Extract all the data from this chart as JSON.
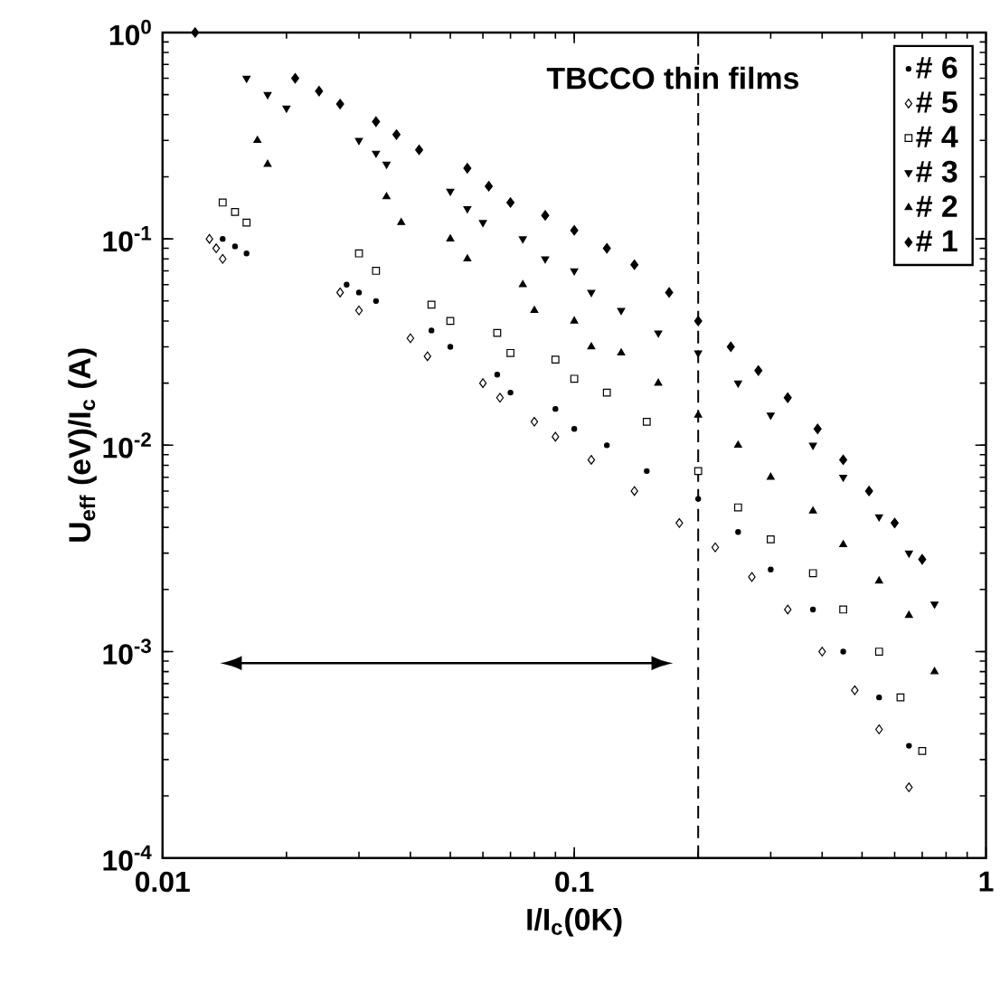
{
  "chart_data": {
    "type": "scatter",
    "xlabel": "I/I$_{c}$(0K)",
    "ylabel": "U$_{eff}$ (eV)/I$_{c}$ (A)",
    "annotations": [
      "TBCCO thin films"
    ],
    "log": "xy",
    "xlim": [
      0.01,
      1
    ],
    "ylim": [
      0.0001,
      1
    ],
    "xticks": [
      0.01,
      0.1,
      1
    ],
    "yticks": [
      {
        "value": 0.0001,
        "label": "10$^{-4}$"
      },
      {
        "value": 0.001,
        "label": "10$^{-3}$"
      },
      {
        "value": 0.01,
        "label": "10$^{-2}$"
      },
      {
        "value": 0.1,
        "label": "10$^{-1}$"
      },
      {
        "value": 1,
        "label": "10$^{0}$"
      }
    ],
    "legend": "top right",
    "ref_lines": [
      {
        "axis": "x",
        "value": 0.2,
        "line_style": "dashed",
        "color": "#000000"
      }
    ],
    "series": [
      {
        "name": "# 6",
        "color": "#000000",
        "marker": "circle",
        "x": [
          0.014,
          0.015,
          0.016,
          0.028,
          0.03,
          0.033,
          0.045,
          0.05,
          0.065,
          0.07,
          0.09,
          0.1,
          0.12,
          0.15,
          0.2,
          0.25,
          0.3,
          0.38,
          0.45,
          0.55,
          0.65
        ],
        "values": [
          0.1,
          0.092,
          0.085,
          0.06,
          0.055,
          0.05,
          0.036,
          0.03,
          0.022,
          0.018,
          0.015,
          0.012,
          0.01,
          0.0075,
          0.0055,
          0.0038,
          0.0025,
          0.0016,
          0.001,
          0.0006,
          0.00035
        ]
      },
      {
        "name": "# 5",
        "color": "#000000",
        "marker": "diamond",
        "x": [
          0.013,
          0.0135,
          0.014,
          0.027,
          0.03,
          0.04,
          0.044,
          0.06,
          0.066,
          0.08,
          0.09,
          0.11,
          0.14,
          0.18,
          0.22,
          0.27,
          0.33,
          0.4,
          0.48,
          0.55,
          0.65
        ],
        "values": [
          0.1,
          0.09,
          0.08,
          0.055,
          0.045,
          0.033,
          0.027,
          0.02,
          0.017,
          0.013,
          0.011,
          0.0085,
          0.006,
          0.0042,
          0.0032,
          0.0023,
          0.0016,
          0.001,
          0.00065,
          0.00042,
          0.00022
        ]
      },
      {
        "name": "# 4",
        "color": "#000000",
        "marker": "square",
        "x": [
          0.014,
          0.015,
          0.016,
          0.03,
          0.033,
          0.045,
          0.05,
          0.065,
          0.07,
          0.09,
          0.1,
          0.12,
          0.15,
          0.2,
          0.25,
          0.3,
          0.38,
          0.45,
          0.55,
          0.62,
          0.7
        ],
        "values": [
          0.15,
          0.135,
          0.12,
          0.085,
          0.07,
          0.048,
          0.04,
          0.035,
          0.028,
          0.026,
          0.021,
          0.018,
          0.013,
          0.0075,
          0.005,
          0.0035,
          0.0024,
          0.0016,
          0.001,
          0.0006,
          0.00033
        ]
      },
      {
        "name": "# 3",
        "color": "#000000",
        "marker": "triangle down",
        "x": [
          0.016,
          0.018,
          0.02,
          0.03,
          0.033,
          0.035,
          0.05,
          0.055,
          0.06,
          0.075,
          0.085,
          0.1,
          0.11,
          0.13,
          0.16,
          0.2,
          0.25,
          0.3,
          0.38,
          0.45,
          0.55,
          0.65,
          0.75
        ],
        "values": [
          0.6,
          0.5,
          0.43,
          0.3,
          0.26,
          0.23,
          0.17,
          0.14,
          0.12,
          0.1,
          0.08,
          0.07,
          0.055,
          0.045,
          0.035,
          0.028,
          0.02,
          0.014,
          0.01,
          0.007,
          0.0045,
          0.003,
          0.0017
        ]
      },
      {
        "name": "# 2",
        "color": "#000000",
        "marker": "triangle",
        "x": [
          0.017,
          0.018,
          0.035,
          0.038,
          0.05,
          0.055,
          0.075,
          0.08,
          0.1,
          0.11,
          0.13,
          0.16,
          0.2,
          0.25,
          0.3,
          0.38,
          0.45,
          0.55,
          0.65,
          0.75
        ],
        "values": [
          0.3,
          0.23,
          0.16,
          0.12,
          0.1,
          0.08,
          0.06,
          0.045,
          0.04,
          0.03,
          0.028,
          0.02,
          0.014,
          0.01,
          0.007,
          0.0048,
          0.0033,
          0.0022,
          0.0015,
          0.0008
        ]
      },
      {
        "name": "# 1",
        "color": "#000000",
        "marker": "diamond filled",
        "x": [
          0.012,
          0.021,
          0.024,
          0.027,
          0.033,
          0.037,
          0.042,
          0.055,
          0.062,
          0.07,
          0.085,
          0.1,
          0.12,
          0.14,
          0.17,
          0.2,
          0.24,
          0.28,
          0.33,
          0.39,
          0.45,
          0.52,
          0.6,
          0.7
        ],
        "values": [
          1.0,
          0.6,
          0.52,
          0.45,
          0.37,
          0.32,
          0.27,
          0.22,
          0.18,
          0.15,
          0.13,
          0.11,
          0.09,
          0.075,
          0.055,
          0.04,
          0.03,
          0.023,
          0.017,
          0.012,
          0.0085,
          0.006,
          0.0042,
          0.0028
        ]
      }
    ]
  }
}
